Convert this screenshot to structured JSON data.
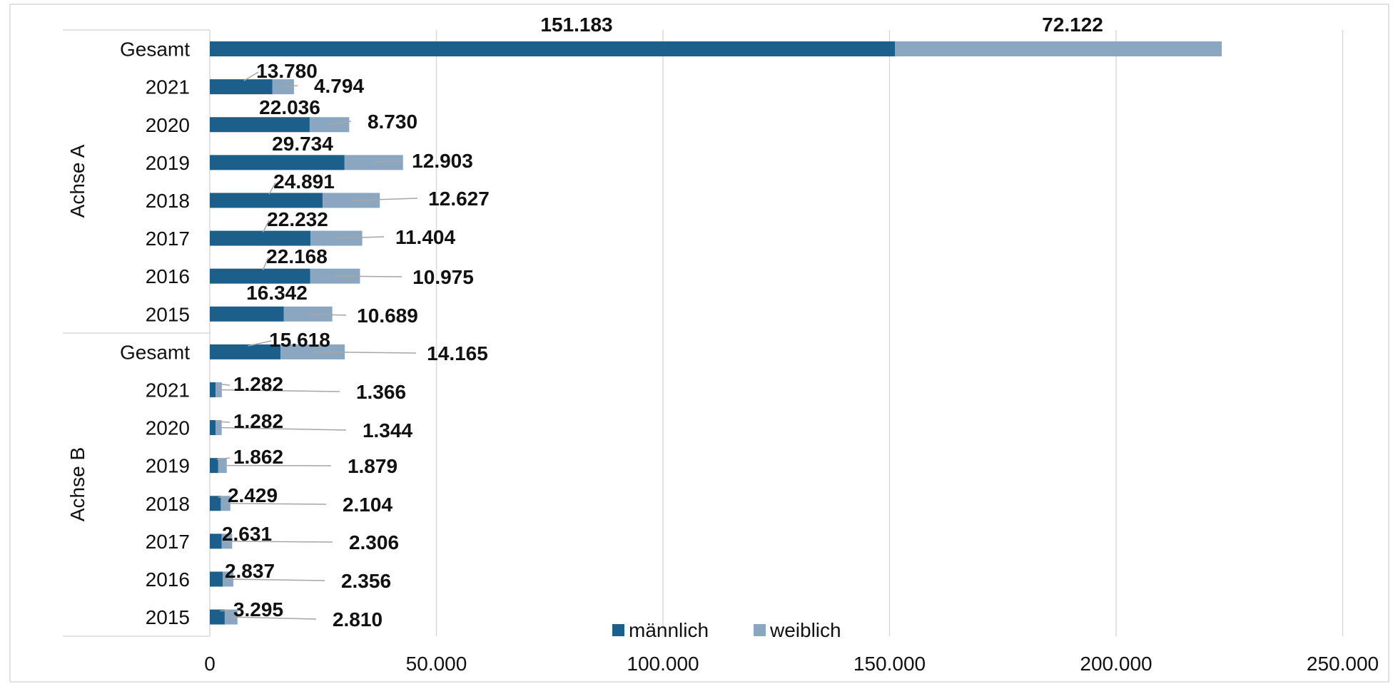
{
  "chart_data": {
    "type": "bar",
    "orientation": "horizontal",
    "stacked": true,
    "groups": [
      {
        "label": "Achse A",
        "categories": [
          "Gesamt",
          "2021",
          "2020",
          "2019",
          "2018",
          "2017",
          "2016",
          "2015"
        ],
        "series": [
          {
            "name": "männlich",
            "values": [
              151183,
              13780,
              22036,
              29734,
              24891,
              22232,
              22168,
              16342
            ],
            "labels": [
              "151.183",
              "13.780",
              "22.036",
              "29.734",
              "24.891",
              "22.232",
              "22.168",
              "16.342"
            ]
          },
          {
            "name": "weiblich",
            "values": [
              72122,
              4794,
              8730,
              12903,
              12627,
              11404,
              10975,
              10689
            ],
            "labels": [
              "72.122",
              "4.794",
              "8.730",
              "12.903",
              "12.627",
              "11.404",
              "10.975",
              "10.689"
            ]
          }
        ]
      },
      {
        "label": "Achse B",
        "categories": [
          "Gesamt",
          "2021",
          "2020",
          "2019",
          "2018",
          "2017",
          "2016",
          "2015"
        ],
        "series": [
          {
            "name": "männlich",
            "values": [
              15618,
              1282,
              1282,
              1862,
              2429,
              2631,
              2837,
              3295
            ],
            "labels": [
              "15.618",
              "1.282",
              "1.282",
              "1.862",
              "2.429",
              "2.631",
              "2.837",
              "3.295"
            ]
          },
          {
            "name": "weiblich",
            "values": [
              14165,
              1366,
              1344,
              1879,
              2104,
              2306,
              2356,
              2810
            ],
            "labels": [
              "14.165",
              "1.366",
              "1.344",
              "1.879",
              "2.104",
              "2.306",
              "2.356",
              "2.810"
            ]
          }
        ]
      }
    ],
    "legend": {
      "position": "bottom",
      "entries": [
        "männlich",
        "weiblich"
      ]
    },
    "x_axis": {
      "range": [
        0,
        250000
      ],
      "ticks": [
        0,
        50000,
        100000,
        150000,
        200000,
        250000
      ],
      "tick_labels": [
        "0",
        "50.000",
        "100.000",
        "150.000",
        "200.000",
        "250.000"
      ]
    },
    "grid": "vertical",
    "colors": {
      "männlich": "#1c5f8b",
      "weiblich": "#8aa6c0",
      "grid": "#d9d9d9",
      "leader": "#a6a6a6"
    }
  }
}
